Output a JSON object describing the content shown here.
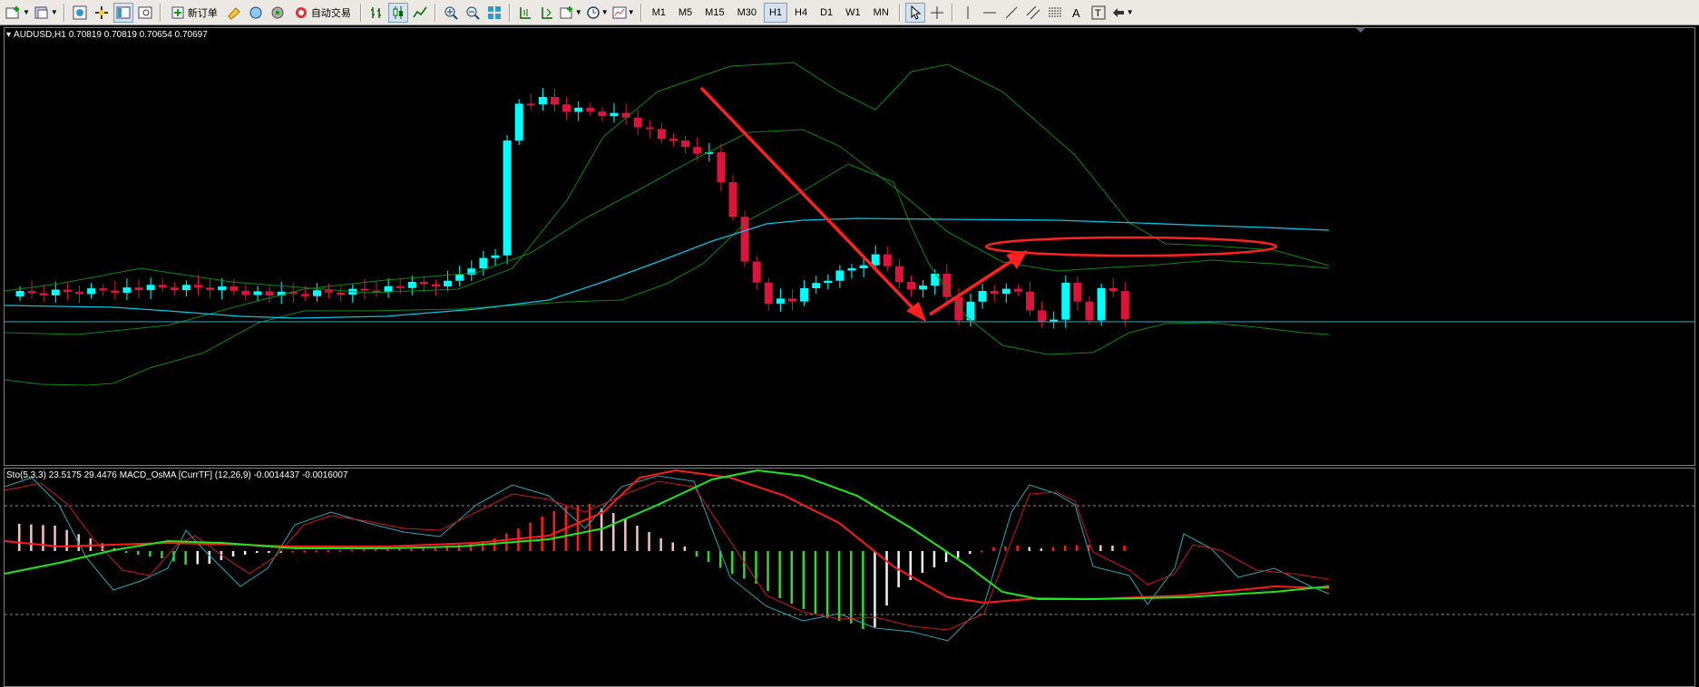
{
  "toolbar": {
    "new_order_label": "新订单",
    "auto_trade_label": "自动交易",
    "timeframes": [
      "M1",
      "M5",
      "M15",
      "M30",
      "H1",
      "H4",
      "D1",
      "W1",
      "MN"
    ],
    "active_timeframe": "H1"
  },
  "main_chart": {
    "symbol": "AUDUSD,H1",
    "ohlc": "0.70819 0.70819 0.70654 0.70697",
    "bull_color": "#00ffff",
    "bear_color": "#dc143c",
    "annotation_color": "#ff2020"
  },
  "indicator": {
    "stoch_label": "Sto(5,3,3) 23.5175 29.4476",
    "macd_label": "MACD_OsMA [CurrTF] (12,26,9) -0.0014437 -0.0016007"
  },
  "chart_data": {
    "type": "candlestick",
    "symbol": "AUDUSD",
    "timeframe": "H1",
    "candles_count": 94,
    "visible_ohlc_last": [
      0.70819,
      0.70819,
      0.70654,
      0.70697
    ],
    "stochastic": {
      "params": [
        5,
        3,
        3
      ],
      "main": 23.5175,
      "signal": 29.4476
    },
    "macd_osma": {
      "params": [
        12,
        26,
        9
      ],
      "values": [
        -0.0014437,
        -0.0016007
      ]
    }
  }
}
